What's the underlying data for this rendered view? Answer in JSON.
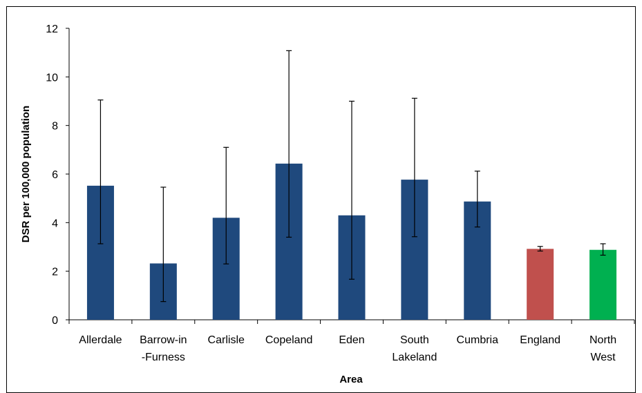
{
  "chart_data": {
    "type": "bar",
    "title": "",
    "xlabel": "Area",
    "ylabel": "DSR per 100,000 population",
    "ylim": [
      0,
      12
    ],
    "yticks": [
      0,
      2,
      4,
      6,
      8,
      10,
      12
    ],
    "grid": false,
    "legend": "none",
    "categories": [
      [
        "Allerdale"
      ],
      [
        "Barrow-in",
        "-Furness"
      ],
      [
        "Carlisle"
      ],
      [
        "Copeland"
      ],
      [
        "Eden"
      ],
      [
        "South",
        "Lakeland"
      ],
      [
        "Cumbria"
      ],
      [
        "England"
      ],
      [
        "North",
        "West"
      ]
    ],
    "values": [
      5.52,
      2.32,
      4.2,
      6.43,
      4.3,
      5.77,
      4.87,
      2.92,
      2.88
    ],
    "ci_lower": [
      3.13,
      0.75,
      2.3,
      3.4,
      1.67,
      3.42,
      3.82,
      2.83,
      2.66
    ],
    "ci_upper": [
      9.05,
      5.46,
      7.1,
      11.08,
      9.0,
      9.12,
      6.12,
      3.02,
      3.13
    ],
    "bar_colors": [
      "#1f497d",
      "#1f497d",
      "#1f497d",
      "#1f497d",
      "#1f497d",
      "#1f497d",
      "#1f497d",
      "#c0504d",
      "#00b050"
    ]
  }
}
